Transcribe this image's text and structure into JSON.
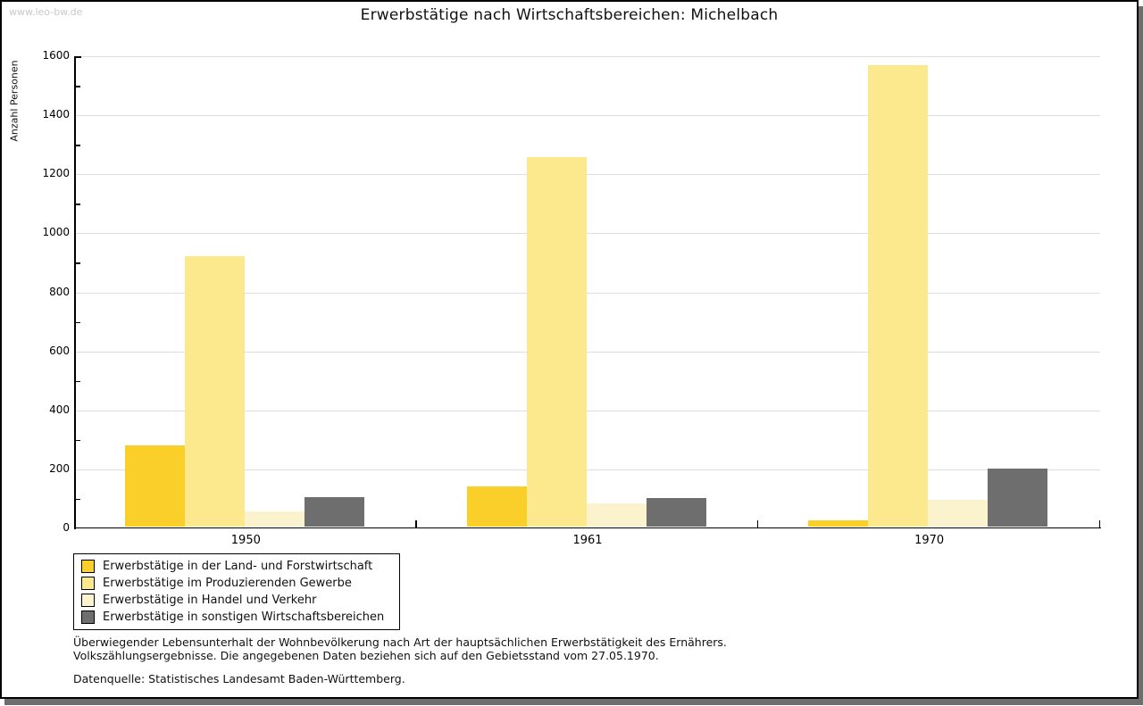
{
  "watermark": "www.leo-bw.de",
  "header": {
    "title": "Erwerbstätige nach Wirtschaftsbereichen: Michelbach"
  },
  "chart_data": {
    "type": "bar",
    "title": "Erwerbstätige nach Wirtschaftsbereichen: Michelbach",
    "ylabel": "Anzahl Personen",
    "xlabel": "",
    "ylim": [
      0,
      1600
    ],
    "ytick_step": 200,
    "minor_tick_step": 100,
    "grid": true,
    "legend_position": "bottom-left",
    "categories": [
      "1950",
      "1961",
      "1970"
    ],
    "series": [
      {
        "name": "Erwerbstätige in der Land- und Forstwirtschaft",
        "color": "#FACF2A",
        "values": [
          277,
          137,
          23
        ]
      },
      {
        "name": "Erwerbstätige im Produzierenden Gewerbe",
        "color": "#FCE98D",
        "values": [
          918,
          1255,
          1565
        ]
      },
      {
        "name": "Erwerbstätige in Handel und Verkehr",
        "color": "#FBF3CE",
        "values": [
          53,
          81,
          92
        ]
      },
      {
        "name": "Erwerbstätige in sonstigen Wirtschaftsbereichen",
        "color": "#6E6E6E",
        "values": [
          102,
          99,
          197
        ]
      }
    ],
    "axis_color": "#000000",
    "grid_color": "#DEDEDE"
  },
  "footnotes": {
    "line1": "Überwiegender Lebensunterhalt der Wohnbevölkerung nach Art der hauptsächlichen Erwerbstätigkeit des Ernährers.",
    "line2": "Volkszählungsergebnisse. Die angegebenen Daten beziehen sich auf den Gebietsstand vom 27.05.1970.",
    "source": "Datenquelle: Statistisches Landesamt Baden-Württemberg."
  }
}
